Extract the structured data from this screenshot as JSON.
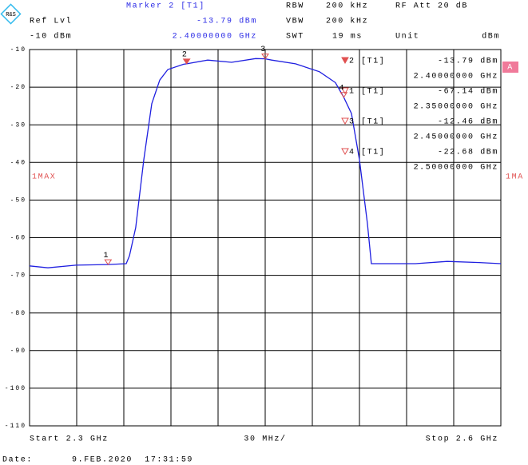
{
  "chart_data": {
    "type": "line",
    "logo": "R&S",
    "header": {
      "marker_title": "Marker 2 [T1]",
      "marker_level": "-13.79 dBm",
      "marker_freq": "2.40000000 GHz",
      "ref_lvl_label": "Ref Lvl",
      "ref_lvl": "-10 dBm",
      "rbw_label": "RBW",
      "rbw": "200 kHz",
      "vbw_label": "VBW",
      "vbw": "200 kHz",
      "swt_label": "SWT",
      "swt": "19 ms",
      "rf_att_label": "RF Att",
      "rf_att": "20 dB",
      "unit_label": "Unit",
      "unit": "dBm"
    },
    "trace_label_left": "1MAX",
    "trace_label_right": "1MA",
    "badge": "A",
    "start_label": "Start 2.3 GHz",
    "span_label": "30 MHz/",
    "stop_label": "Stop 2.6 GHz",
    "date_label": "Date:",
    "date": "9.FEB.2020  17:31:59",
    "xlim": [
      2.3,
      2.6
    ],
    "xticks": [
      2.3,
      2.33,
      2.36,
      2.39,
      2.42,
      2.45,
      2.48,
      2.51,
      2.54,
      2.57,
      2.6
    ],
    "ylim": [
      -110,
      -10
    ],
    "yticks": [
      -10,
      -20,
      -30,
      -40,
      -50,
      -60,
      -70,
      -80,
      -90,
      -100,
      -110
    ],
    "grid": true,
    "series": [
      {
        "name": "1MAX",
        "color": "#1f1fe0",
        "x": [
          2.3,
          2.3117,
          2.3295,
          2.35,
          2.3524,
          2.3615,
          2.3636,
          2.3676,
          2.3727,
          2.3778,
          2.3829,
          2.388,
          2.3981,
          2.4,
          2.4134,
          2.4286,
          2.4439,
          2.45,
          2.4541,
          2.4693,
          2.4846,
          2.4947,
          2.5,
          2.5049,
          2.51,
          2.5151,
          2.5176,
          2.5253,
          2.5456,
          2.5659,
          2.5863,
          2.6
        ],
        "values": [
          -67.5,
          -68,
          -67.3,
          -67.14,
          -67.1,
          -66.9,
          -64.8,
          -57.3,
          -39.3,
          -24.4,
          -18.1,
          -15.3,
          -13.9,
          -13.79,
          -12.8,
          -13.4,
          -12.4,
          -12.46,
          -12.8,
          -13.8,
          -15.9,
          -18.8,
          -22.68,
          -27,
          -39.3,
          -56.3,
          -66.9,
          -66.9,
          -66.9,
          -66.3,
          -66.6,
          -66.9
        ]
      }
    ],
    "marker_color": "#e05050",
    "markers": [
      {
        "id": "2",
        "tag": "[T1]",
        "x": 2.4,
        "x_label": "2.40000000 GHz",
        "y": -13.79,
        "y_label": "-13.79 dBm"
      },
      {
        "id": "1",
        "tag": "[T1]",
        "x": 2.35,
        "x_label": "2.35000000 GHz",
        "y": -67.14,
        "y_label": "-67.14 dBm"
      },
      {
        "id": "3",
        "tag": "[T1]",
        "x": 2.45,
        "x_label": "2.45000000 GHz",
        "y": -12.46,
        "y_label": "-12.46 dBm"
      },
      {
        "id": "4",
        "tag": "[T1]",
        "x": 2.5,
        "x_label": "2.50000000 GHz",
        "y": -22.68,
        "y_label": "-22.68 dBm"
      }
    ]
  }
}
